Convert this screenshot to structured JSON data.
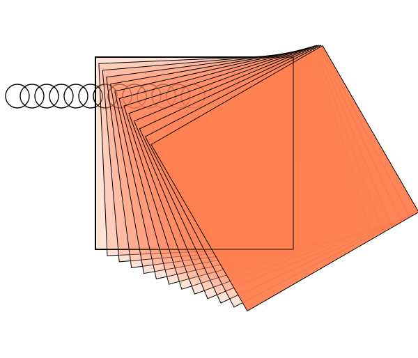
{
  "figure": {
    "background": "#ffffff",
    "outline_color": "#000000",
    "fill_color": "#ff7f50",
    "ring_count": 13,
    "square_count": 13,
    "square_total_rotation_deg": 30,
    "square_fill_opacity_start": 0.25,
    "square_fill_opacity_end": 1.0,
    "final_square_outline_opacity": 0.45
  }
}
